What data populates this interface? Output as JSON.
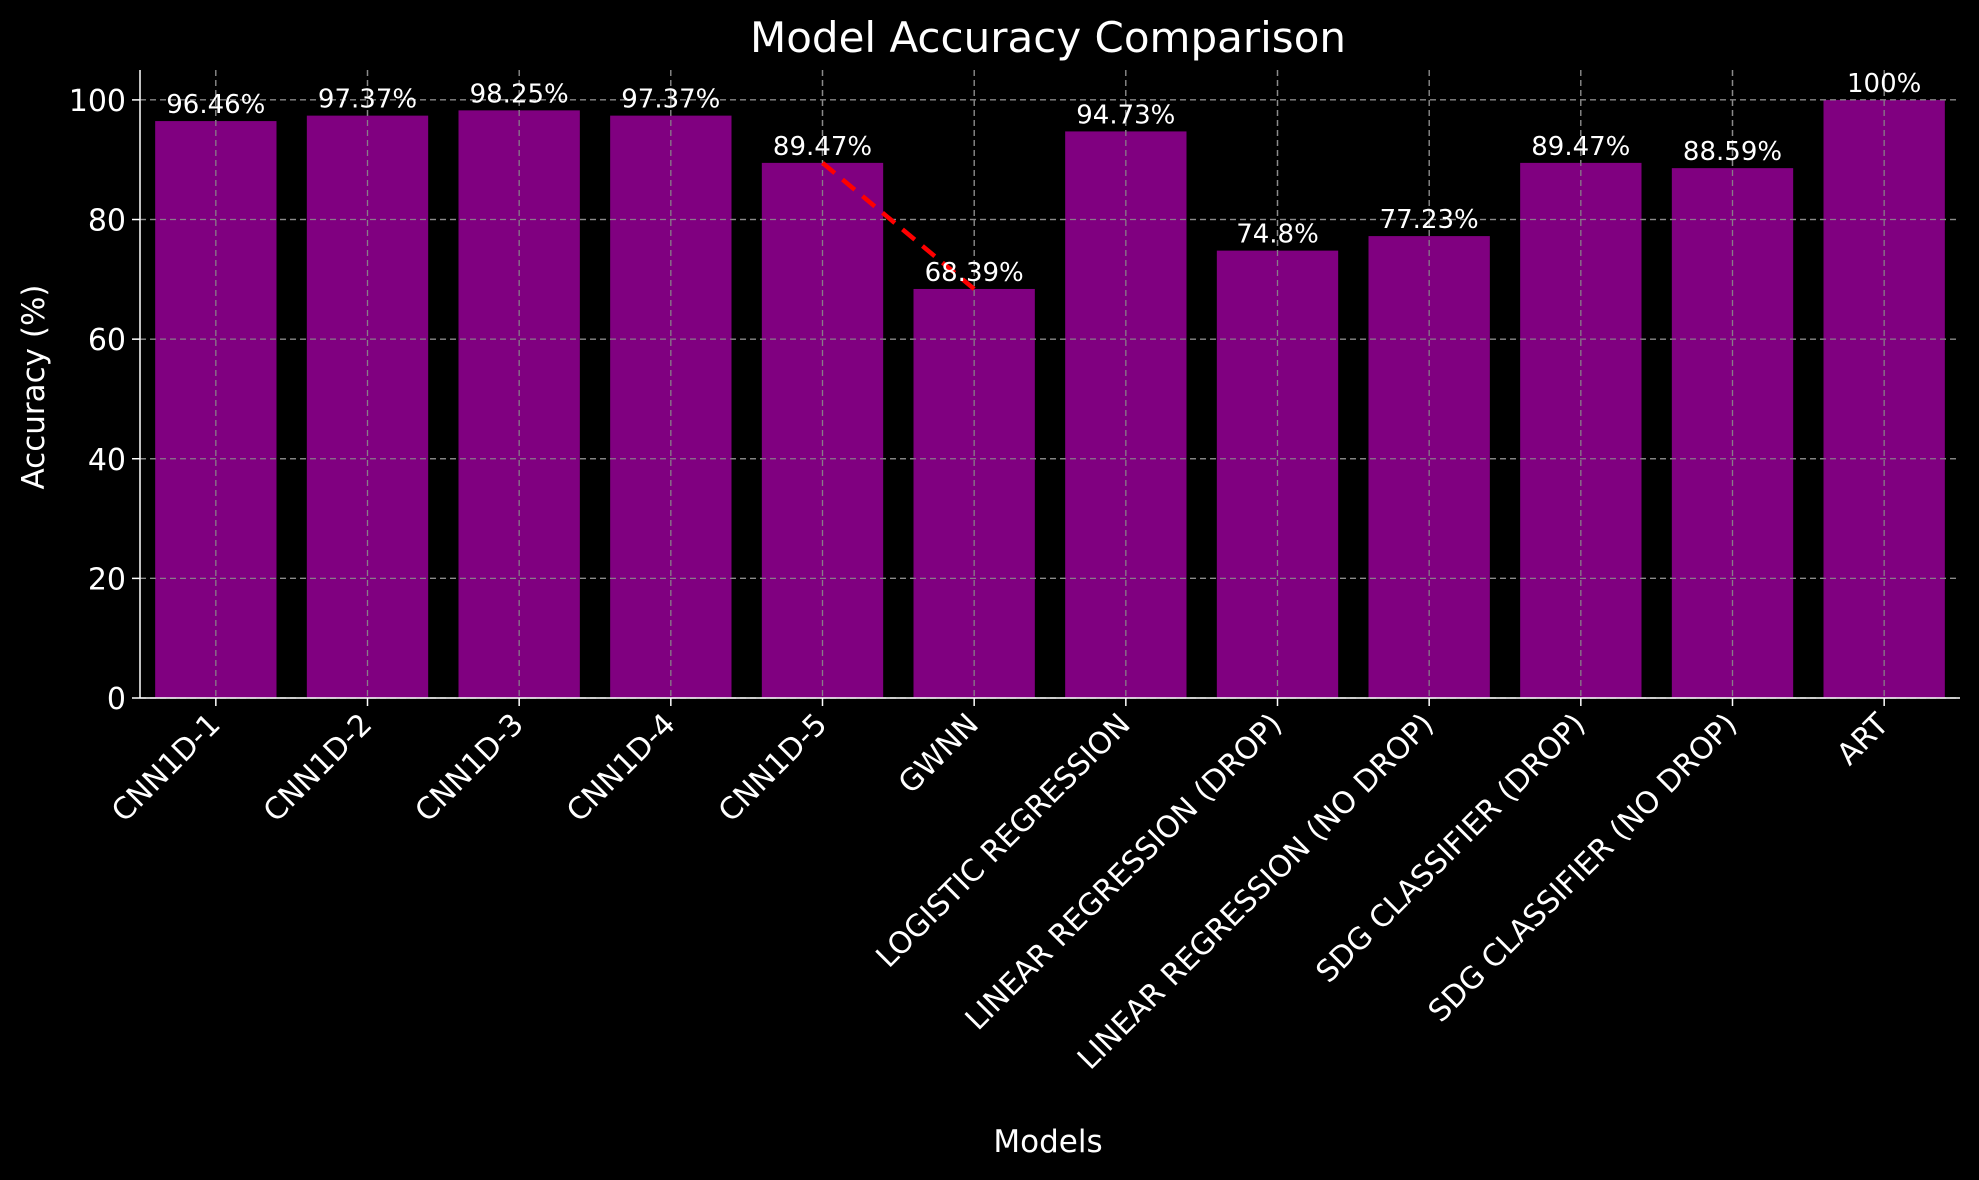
{
  "chart_data": {
    "type": "bar",
    "title": "Model Accuracy Comparison",
    "xlabel": "Models",
    "ylabel": "Accuracy (%)",
    "ylim": [
      0,
      105
    ],
    "yticks": [
      0,
      20,
      40,
      60,
      80,
      100
    ],
    "grid": true,
    "categories": [
      "CNN1D-1",
      "CNN1D-2",
      "CNN1D-3",
      "CNN1D-4",
      "CNN1D-5",
      "GWNN",
      "LOGISTIC REGRESSION",
      "LINEAR REGRESSION (DROP)",
      "LINEAR REGRESSION (NO DROP)",
      "SDG CLASSIFIER (DROP)",
      "SDG CLASSIFIER (NO DROP)",
      "ART"
    ],
    "values": [
      96.46,
      97.37,
      98.25,
      97.37,
      89.47,
      68.39,
      94.73,
      74.8,
      77.23,
      89.47,
      88.59,
      100
    ],
    "value_labels": [
      "96.46%",
      "97.37%",
      "98.25%",
      "97.37%",
      "89.47%",
      "68.39%",
      "94.73%",
      "74.8%",
      "77.23%",
      "89.47%",
      "88.59%",
      "100%"
    ],
    "annotations": [
      {
        "type": "dashed-line",
        "from_category": "CNN1D-5",
        "from_value": 89.47,
        "to_category": "GWNN",
        "to_value": 68.39,
        "color": "#ff0000"
      }
    ],
    "colors": {
      "background": "#000000",
      "bar": "#800080",
      "grid": "#8a8a8a",
      "text": "#ffffff",
      "annotation": "#ff0000"
    }
  }
}
